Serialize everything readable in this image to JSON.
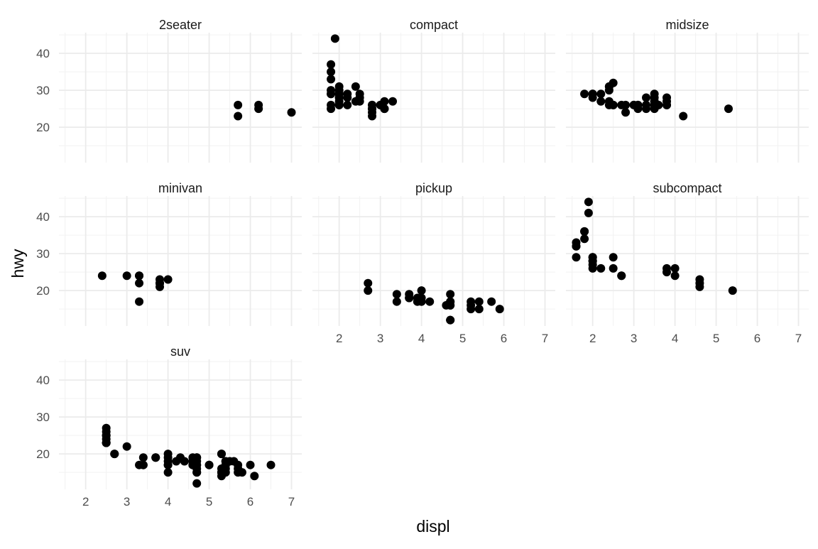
{
  "chart_data": {
    "type": "scatter",
    "xlabel": "displ",
    "ylabel": "hwy",
    "xlim": [
      1.35,
      7.25
    ],
    "ylim": [
      10.4,
      45.6
    ],
    "x_ticks": [
      2,
      3,
      4,
      5,
      6,
      7
    ],
    "x_tick_labels": [
      "2",
      "3",
      "4",
      "5",
      "6",
      "7"
    ],
    "y_ticks": [
      20,
      30,
      40
    ],
    "y_tick_labels": [
      "20",
      "30",
      "40"
    ],
    "grid": true,
    "facet_by": "class",
    "facets": [
      {
        "name": "2seater",
        "points": [
          [
            5.7,
            26
          ],
          [
            5.7,
            23
          ],
          [
            6.2,
            26
          ],
          [
            6.2,
            25
          ],
          [
            7.0,
            24
          ]
        ]
      },
      {
        "name": "compact",
        "points": [
          [
            1.8,
            29
          ],
          [
            1.8,
            29
          ],
          [
            2.0,
            31
          ],
          [
            2.0,
            30
          ],
          [
            2.8,
            26
          ],
          [
            2.8,
            26
          ],
          [
            3.1,
            27
          ],
          [
            1.8,
            26
          ],
          [
            1.8,
            25
          ],
          [
            2.0,
            28
          ],
          [
            2.0,
            27
          ],
          [
            2.8,
            25
          ],
          [
            2.8,
            25
          ],
          [
            3.1,
            25
          ],
          [
            3.1,
            25
          ],
          [
            2.2,
            26
          ],
          [
            2.2,
            29
          ],
          [
            2.4,
            27
          ],
          [
            2.4,
            31
          ],
          [
            3.0,
            26
          ],
          [
            3.0,
            26
          ],
          [
            3.3,
            27
          ],
          [
            1.8,
            37
          ],
          [
            1.8,
            35
          ],
          [
            1.8,
            33
          ],
          [
            1.8,
            30
          ],
          [
            1.9,
            44
          ],
          [
            2.0,
            29
          ],
          [
            2.0,
            29
          ],
          [
            2.0,
            26
          ],
          [
            2.0,
            26
          ],
          [
            2.0,
            29
          ],
          [
            2.5,
            29
          ],
          [
            2.5,
            27
          ],
          [
            2.8,
            24
          ],
          [
            2.8,
            23
          ],
          [
            2.5,
            28
          ],
          [
            2.2,
            28
          ],
          [
            2.0,
            28
          ]
        ]
      },
      {
        "name": "midsize",
        "points": [
          [
            2.4,
            31
          ],
          [
            2.4,
            30
          ],
          [
            3.1,
            26
          ],
          [
            3.5,
            29
          ],
          [
            3.6,
            26
          ],
          [
            2.4,
            27
          ],
          [
            3.0,
            26
          ],
          [
            3.3,
            26
          ],
          [
            3.8,
            28
          ],
          [
            3.8,
            26
          ],
          [
            5.3,
            25
          ],
          [
            2.4,
            31
          ],
          [
            2.5,
            32
          ],
          [
            2.5,
            26
          ],
          [
            3.5,
            25
          ],
          [
            3.5,
            27
          ],
          [
            2.4,
            26
          ],
          [
            3.1,
            25
          ],
          [
            3.5,
            27
          ],
          [
            2.0,
            29
          ],
          [
            2.0,
            28
          ],
          [
            2.8,
            26
          ],
          [
            3.1,
            26
          ],
          [
            4.2,
            23
          ],
          [
            1.8,
            29
          ],
          [
            2.0,
            29
          ],
          [
            2.2,
            27
          ],
          [
            2.2,
            29
          ],
          [
            2.5,
            26
          ],
          [
            3.0,
            26
          ],
          [
            3.3,
            28
          ],
          [
            3.5,
            28
          ],
          [
            3.5,
            26
          ],
          [
            3.8,
            27
          ],
          [
            2.8,
            24
          ],
          [
            2.7,
            26
          ],
          [
            3.3,
            25
          ],
          [
            3.8,
            26
          ]
        ]
      },
      {
        "name": "minivan",
        "points": [
          [
            2.4,
            24
          ],
          [
            3.0,
            24
          ],
          [
            3.3,
            22
          ],
          [
            3.3,
            24
          ],
          [
            3.3,
            17
          ],
          [
            3.8,
            22
          ],
          [
            3.8,
            21
          ],
          [
            3.8,
            23
          ],
          [
            4.0,
            23
          ],
          [
            3.3,
            24
          ],
          [
            3.8,
            22
          ]
        ]
      },
      {
        "name": "pickup",
        "points": [
          [
            2.7,
            20
          ],
          [
            2.7,
            22
          ],
          [
            3.4,
            17
          ],
          [
            3.4,
            19
          ],
          [
            3.7,
            19
          ],
          [
            3.7,
            18
          ],
          [
            3.9,
            17
          ],
          [
            4.0,
            17
          ],
          [
            4.0,
            20
          ],
          [
            4.2,
            17
          ],
          [
            4.7,
            17
          ],
          [
            4.7,
            12
          ],
          [
            4.7,
            16
          ],
          [
            4.7,
            19
          ],
          [
            5.2,
            17
          ],
          [
            5.2,
            15
          ],
          [
            5.7,
            17
          ],
          [
            5.9,
            15
          ],
          [
            4.7,
            16
          ],
          [
            5.2,
            16
          ],
          [
            5.4,
            17
          ],
          [
            5.4,
            15
          ],
          [
            4.6,
            16
          ],
          [
            4.7,
            17
          ],
          [
            4.7,
            12
          ],
          [
            3.7,
            18
          ],
          [
            4.0,
            18
          ],
          [
            3.9,
            18
          ]
        ]
      },
      {
        "name": "subcompact",
        "points": [
          [
            3.8,
            26
          ],
          [
            3.8,
            25
          ],
          [
            4.0,
            26
          ],
          [
            4.0,
            24
          ],
          [
            4.6,
            21
          ],
          [
            4.6,
            22
          ],
          [
            4.6,
            23
          ],
          [
            5.4,
            20
          ],
          [
            1.6,
            33
          ],
          [
            1.6,
            32
          ],
          [
            1.6,
            32
          ],
          [
            1.6,
            29
          ],
          [
            1.8,
            34
          ],
          [
            1.8,
            36
          ],
          [
            1.8,
            36
          ],
          [
            2.0,
            29
          ],
          [
            2.0,
            26
          ],
          [
            2.0,
            27
          ],
          [
            2.0,
            28
          ],
          [
            2.0,
            29
          ],
          [
            2.2,
            26
          ],
          [
            1.9,
            44
          ],
          [
            1.9,
            41
          ],
          [
            2.0,
            28
          ],
          [
            2.5,
            26
          ],
          [
            2.5,
            29
          ],
          [
            2.7,
            24
          ],
          [
            2.7,
            24
          ]
        ]
      },
      {
        "name": "suv",
        "points": [
          [
            5.3,
            20
          ],
          [
            5.3,
            15
          ],
          [
            5.3,
            20
          ],
          [
            5.7,
            17
          ],
          [
            6.0,
            17
          ],
          [
            5.3,
            15
          ],
          [
            5.7,
            16
          ],
          [
            6.5,
            17
          ],
          [
            4.0,
            17
          ],
          [
            4.0,
            19
          ],
          [
            4.7,
            17
          ],
          [
            4.7,
            15
          ],
          [
            4.7,
            15
          ],
          [
            4.7,
            17
          ],
          [
            5.7,
            15
          ],
          [
            6.1,
            14
          ],
          [
            4.7,
            18
          ],
          [
            5.3,
            16
          ],
          [
            5.4,
            15
          ],
          [
            5.4,
            18
          ],
          [
            3.7,
            19
          ],
          [
            3.7,
            19
          ],
          [
            4.0,
            20
          ],
          [
            4.0,
            18
          ],
          [
            4.6,
            18
          ],
          [
            4.6,
            19
          ],
          [
            5.0,
            17
          ],
          [
            4.2,
            18
          ],
          [
            4.4,
            18
          ],
          [
            4.6,
            17
          ],
          [
            5.4,
            18
          ],
          [
            5.4,
            17
          ],
          [
            5.4,
            16
          ],
          [
            4.7,
            12
          ],
          [
            4.7,
            19
          ],
          [
            4.0,
            17
          ],
          [
            4.0,
            15
          ],
          [
            4.6,
            17
          ],
          [
            5.0,
            17
          ],
          [
            5.6,
            18
          ],
          [
            2.5,
            24
          ],
          [
            2.5,
            23
          ],
          [
            2.5,
            25
          ],
          [
            2.5,
            23
          ],
          [
            2.5,
            27
          ],
          [
            2.5,
            26
          ],
          [
            2.5,
            25
          ],
          [
            2.5,
            23
          ],
          [
            3.4,
            17
          ],
          [
            3.4,
            19
          ],
          [
            3.3,
            17
          ],
          [
            2.7,
            20
          ],
          [
            2.7,
            20
          ],
          [
            3.0,
            22
          ],
          [
            3.4,
            17
          ],
          [
            5.8,
            15
          ],
          [
            4.7,
            19
          ],
          [
            4.7,
            16
          ],
          [
            5.3,
            14
          ],
          [
            4.3,
            19
          ],
          [
            5.5,
            18
          ]
        ]
      }
    ]
  }
}
